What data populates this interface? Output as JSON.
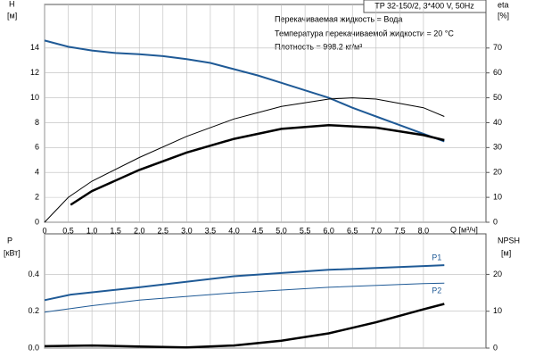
{
  "chart_data": [
    {
      "type": "line",
      "title": "TP 32-150/2, 3*400 V, 50Hz",
      "annotations": [
        "Перекачиваемая жидкость = Вода",
        "Температура перекачиваемой жидкости = 20 °C",
        "Плотность = 998.2 кг/м³"
      ],
      "y_label": "H",
      "y_unit": "[м]",
      "y2_label": "eta",
      "y2_unit": "[%]",
      "x_label": "Q [м³/ч]",
      "xlim": [
        0,
        9.32
      ],
      "ylim": [
        0,
        17.5
      ],
      "y2lim": [
        0,
        87.5
      ],
      "xticks": [
        0,
        {
          "value": 0.5,
          "label": "0,5"
        },
        {
          "value": 1,
          "label": "1,0"
        },
        {
          "value": 1.5,
          "label": "1,5"
        },
        {
          "value": 2,
          "label": "2,0"
        },
        {
          "value": 2.5,
          "label": "2,5"
        },
        {
          "value": 3,
          "label": "3,0"
        },
        {
          "value": 3.5,
          "label": "3,5"
        },
        {
          "value": 4,
          "label": "4,0"
        },
        {
          "value": 4.5,
          "label": "4,5"
        },
        {
          "value": 5,
          "label": "5,0"
        },
        {
          "value": 5.5,
          "label": "5,5"
        },
        {
          "value": 6,
          "label": "6,0"
        },
        {
          "value": 6.5,
          "label": "6,5"
        },
        {
          "value": 7,
          "label": "7,0"
        },
        {
          "value": 7.5,
          "label": "7,5"
        },
        {
          "value": 8,
          "label": "8,0"
        }
      ],
      "yticks": [
        0,
        2,
        4,
        6,
        8,
        10,
        12,
        14
      ],
      "y2ticks": [
        0,
        10,
        20,
        30,
        40,
        50,
        60,
        70
      ],
      "grid": true,
      "series": [
        {
          "color": "#1f5a96",
          "linewidth": 2,
          "x": [
            0,
            0.5,
            1,
            1.5,
            2,
            2.5,
            3,
            3.5,
            4,
            4.5,
            5,
            5.5,
            6,
            6.5,
            7,
            7.5,
            8,
            8.44
          ],
          "values": [
            14.6,
            14.1,
            13.8,
            13.6,
            13.5,
            13.35,
            13.1,
            12.8,
            12.3,
            11.8,
            11.2,
            10.6,
            10.0,
            9.2,
            8.5,
            7.8,
            7.1,
            6.5
          ]
        },
        {
          "color": "#000000",
          "linewidth": 1,
          "axis": "y2",
          "x": [
            0,
            0.5,
            1,
            2,
            3,
            4,
            5,
            6,
            6.5,
            7,
            8,
            8.44
          ],
          "values": [
            0,
            10,
            16.5,
            26,
            34.5,
            41.5,
            46.5,
            49.5,
            50,
            49.5,
            46,
            42.5
          ]
        },
        {
          "color": "#000000",
          "linewidth": 2.5,
          "axis": "y2",
          "x": [
            0.55,
            1,
            2,
            3,
            4,
            5,
            6,
            7,
            8,
            8.44
          ],
          "values": [
            7,
            12.5,
            21,
            28,
            33.5,
            37.5,
            39,
            38,
            35,
            33
          ]
        }
      ]
    },
    {
      "type": "line",
      "y_label": "P",
      "y_unit": "[кВт]",
      "y2_label": "NPSH",
      "y2_unit": "[м]",
      "xlim": [
        0,
        9.32
      ],
      "ylim": [
        0,
        0.62
      ],
      "y2lim": [
        0,
        31
      ],
      "yticks": [
        {
          "value": 0,
          "label": "0.0"
        },
        0.2,
        0.4
      ],
      "y2ticks": [
        0,
        10,
        20
      ],
      "grid": true,
      "series": [
        {
          "name": "P1",
          "color": "#1f5a96",
          "linewidth": 2,
          "x": [
            0,
            0.55,
            2,
            4,
            6,
            8,
            8.44
          ],
          "values": [
            0.26,
            0.29,
            0.33,
            0.39,
            0.425,
            0.445,
            0.45
          ]
        },
        {
          "name": "P2",
          "color": "#1f5a96",
          "linewidth": 1,
          "x": [
            0,
            1,
            2,
            4,
            6,
            8,
            8.44
          ],
          "values": [
            0.195,
            0.23,
            0.26,
            0.3,
            0.33,
            0.35,
            0.352
          ]
        },
        {
          "color": "#000000",
          "linewidth": 2.5,
          "axis": "y2",
          "x": [
            0,
            1,
            2,
            3,
            4,
            5,
            6,
            7,
            8,
            8.44
          ],
          "values": [
            0.5,
            0.7,
            0.4,
            0.2,
            0.7,
            2,
            4,
            7,
            10.5,
            12
          ]
        }
      ]
    }
  ]
}
